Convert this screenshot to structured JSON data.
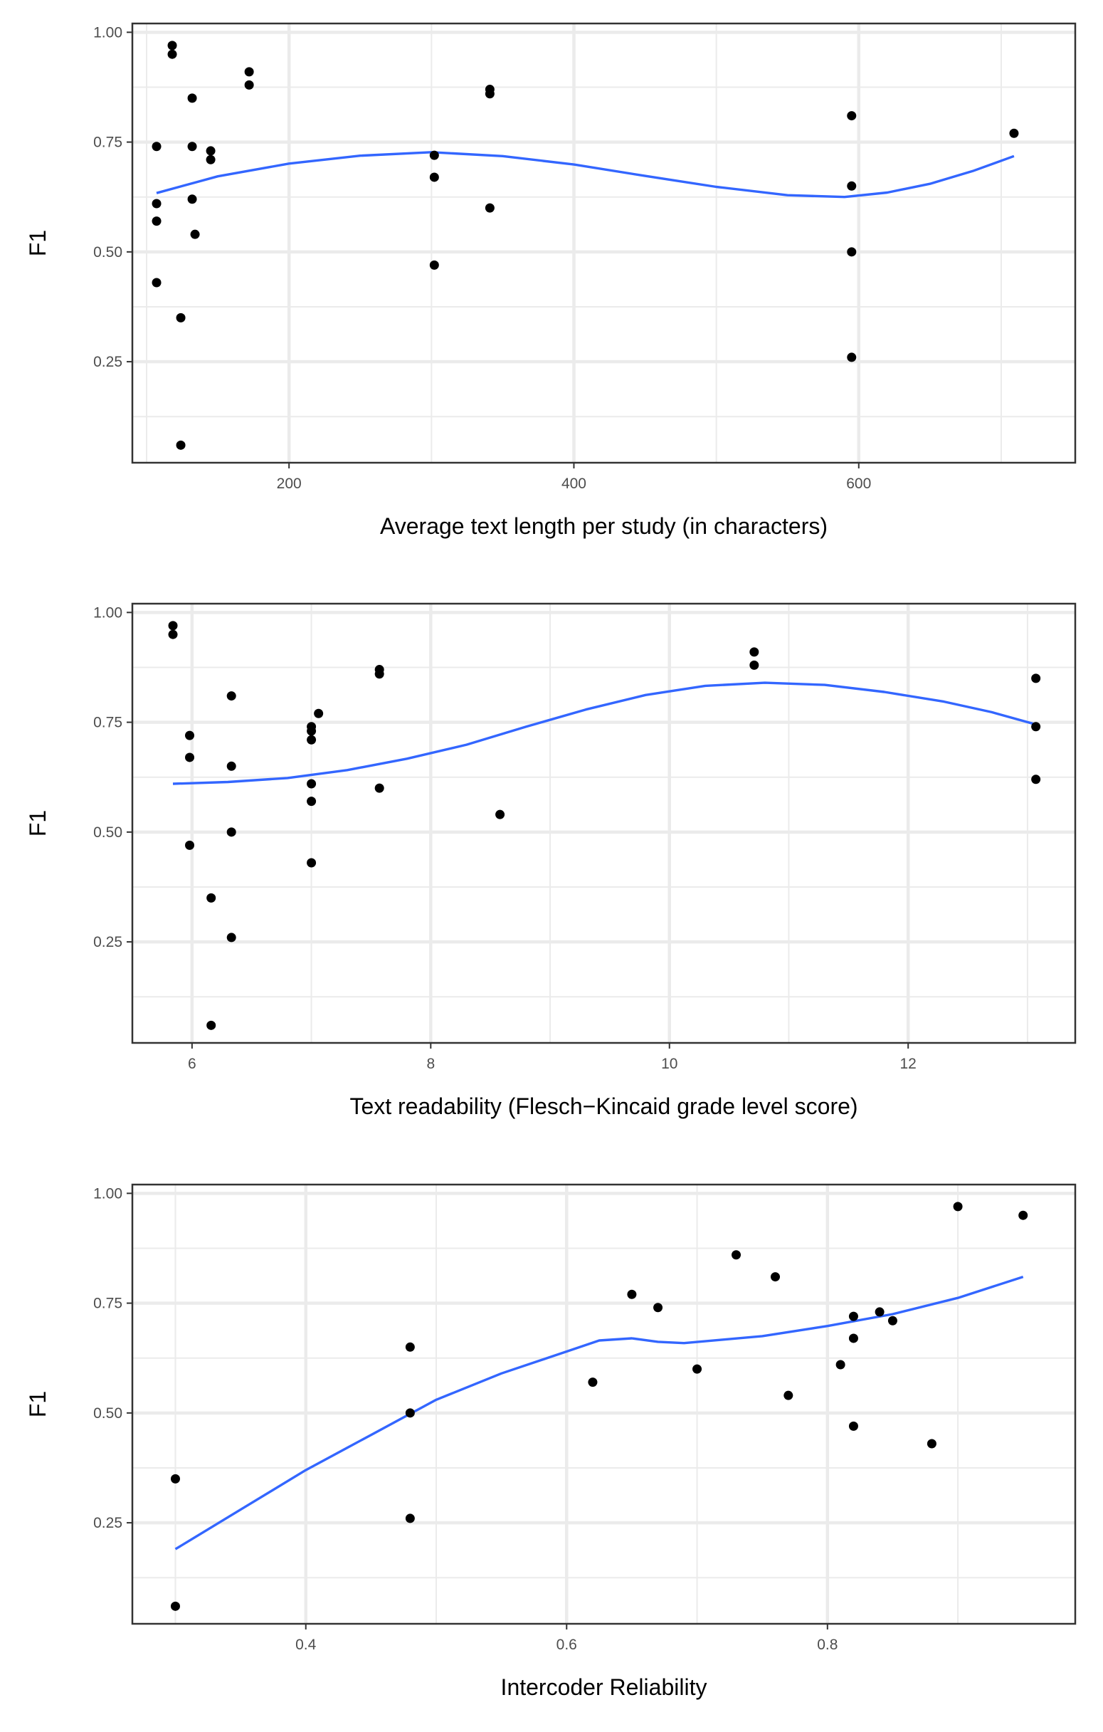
{
  "chart_data": [
    {
      "type": "scatter",
      "xlabel": "Average text length per study (in characters)",
      "ylabel": "F1",
      "xlim": [
        90,
        752
      ],
      "ylim": [
        0.02,
        1.02
      ],
      "xticks": [
        200,
        400,
        600
      ],
      "xtick_labels": [
        "200",
        "400",
        "600"
      ],
      "yticks": [
        0.25,
        0.5,
        0.75,
        1.0
      ],
      "ytick_labels": [
        "0.25",
        "0.50",
        "0.75",
        "1.00"
      ],
      "grid": true,
      "points": [
        {
          "x": 118,
          "y": 0.97
        },
        {
          "x": 118,
          "y": 0.95
        },
        {
          "x": 132,
          "y": 0.85
        },
        {
          "x": 107,
          "y": 0.74
        },
        {
          "x": 132,
          "y": 0.74
        },
        {
          "x": 145,
          "y": 0.73
        },
        {
          "x": 145,
          "y": 0.71
        },
        {
          "x": 107,
          "y": 0.61
        },
        {
          "x": 132,
          "y": 0.62
        },
        {
          "x": 107,
          "y": 0.57
        },
        {
          "x": 134,
          "y": 0.54
        },
        {
          "x": 107,
          "y": 0.43
        },
        {
          "x": 124,
          "y": 0.35
        },
        {
          "x": 124,
          "y": 0.06
        },
        {
          "x": 172,
          "y": 0.91
        },
        {
          "x": 172,
          "y": 0.88
        },
        {
          "x": 302,
          "y": 0.72
        },
        {
          "x": 302,
          "y": 0.67
        },
        {
          "x": 302,
          "y": 0.47
        },
        {
          "x": 341,
          "y": 0.87
        },
        {
          "x": 341,
          "y": 0.86
        },
        {
          "x": 341,
          "y": 0.6
        },
        {
          "x": 595,
          "y": 0.81
        },
        {
          "x": 595,
          "y": 0.65
        },
        {
          "x": 595,
          "y": 0.5
        },
        {
          "x": 595,
          "y": 0.26
        },
        {
          "x": 709,
          "y": 0.77
        }
      ],
      "smooth_line": [
        [
          107,
          0.634
        ],
        [
          150,
          0.672
        ],
        [
          200,
          0.701
        ],
        [
          250,
          0.719
        ],
        [
          300,
          0.727
        ],
        [
          350,
          0.718
        ],
        [
          400,
          0.699
        ],
        [
          450,
          0.673
        ],
        [
          500,
          0.648
        ],
        [
          550,
          0.629
        ],
        [
          590,
          0.625
        ],
        [
          620,
          0.635
        ],
        [
          650,
          0.655
        ],
        [
          680,
          0.684
        ],
        [
          709,
          0.718
        ]
      ]
    },
    {
      "type": "scatter",
      "xlabel": "Text readability (Flesch−Kincaid grade level score)",
      "ylabel": "F1",
      "xlim": [
        5.5,
        13.4
      ],
      "ylim": [
        0.02,
        1.02
      ],
      "xticks": [
        6,
        8,
        10,
        12
      ],
      "xtick_labels": [
        "6",
        "8",
        "10",
        "12"
      ],
      "yticks": [
        0.25,
        0.5,
        0.75,
        1.0
      ],
      "ytick_labels": [
        "0.25",
        "0.50",
        "0.75",
        "1.00"
      ],
      "grid": true,
      "points": [
        {
          "x": 5.84,
          "y": 0.97
        },
        {
          "x": 5.84,
          "y": 0.95
        },
        {
          "x": 5.98,
          "y": 0.72
        },
        {
          "x": 5.98,
          "y": 0.67
        },
        {
          "x": 5.98,
          "y": 0.47
        },
        {
          "x": 6.16,
          "y": 0.35
        },
        {
          "x": 6.16,
          "y": 0.06
        },
        {
          "x": 6.33,
          "y": 0.81
        },
        {
          "x": 6.33,
          "y": 0.65
        },
        {
          "x": 6.33,
          "y": 0.5
        },
        {
          "x": 6.33,
          "y": 0.26
        },
        {
          "x": 7.0,
          "y": 0.74
        },
        {
          "x": 7.0,
          "y": 0.73
        },
        {
          "x": 7.0,
          "y": 0.71
        },
        {
          "x": 7.0,
          "y": 0.61
        },
        {
          "x": 7.0,
          "y": 0.57
        },
        {
          "x": 7.0,
          "y": 0.43
        },
        {
          "x": 7.06,
          "y": 0.77
        },
        {
          "x": 7.57,
          "y": 0.87
        },
        {
          "x": 7.57,
          "y": 0.86
        },
        {
          "x": 7.57,
          "y": 0.6
        },
        {
          "x": 8.58,
          "y": 0.54
        },
        {
          "x": 10.71,
          "y": 0.91
        },
        {
          "x": 10.71,
          "y": 0.88
        },
        {
          "x": 13.07,
          "y": 0.85
        },
        {
          "x": 13.07,
          "y": 0.74
        },
        {
          "x": 13.07,
          "y": 0.62
        }
      ],
      "smooth_line": [
        [
          5.84,
          0.61
        ],
        [
          6.3,
          0.614
        ],
        [
          6.8,
          0.623
        ],
        [
          7.3,
          0.641
        ],
        [
          7.8,
          0.667
        ],
        [
          8.3,
          0.699
        ],
        [
          8.8,
          0.74
        ],
        [
          9.3,
          0.779
        ],
        [
          9.8,
          0.812
        ],
        [
          10.3,
          0.833
        ],
        [
          10.8,
          0.84
        ],
        [
          11.3,
          0.835
        ],
        [
          11.8,
          0.819
        ],
        [
          12.3,
          0.797
        ],
        [
          12.7,
          0.773
        ],
        [
          13.07,
          0.745
        ]
      ]
    },
    {
      "type": "scatter",
      "xlabel": "Intercoder Reliability",
      "ylabel": "F1",
      "xlim": [
        0.267,
        0.99
      ],
      "ylim": [
        0.02,
        1.02
      ],
      "xticks": [
        0.4,
        0.6,
        0.8
      ],
      "xtick_labels": [
        "0.4",
        "0.6",
        "0.8"
      ],
      "yticks": [
        0.25,
        0.5,
        0.75,
        1.0
      ],
      "ytick_labels": [
        "0.25",
        "0.50",
        "0.75",
        "1.00"
      ],
      "grid": true,
      "points": [
        {
          "x": 0.3,
          "y": 0.35
        },
        {
          "x": 0.3,
          "y": 0.06
        },
        {
          "x": 0.48,
          "y": 0.65
        },
        {
          "x": 0.48,
          "y": 0.5
        },
        {
          "x": 0.48,
          "y": 0.26
        },
        {
          "x": 0.62,
          "y": 0.57
        },
        {
          "x": 0.65,
          "y": 0.77
        },
        {
          "x": 0.67,
          "y": 0.74
        },
        {
          "x": 0.7,
          "y": 0.6
        },
        {
          "x": 0.73,
          "y": 0.86
        },
        {
          "x": 0.76,
          "y": 0.81
        },
        {
          "x": 0.77,
          "y": 0.54
        },
        {
          "x": 0.81,
          "y": 0.61
        },
        {
          "x": 0.82,
          "y": 0.72
        },
        {
          "x": 0.82,
          "y": 0.67
        },
        {
          "x": 0.82,
          "y": 0.47
        },
        {
          "x": 0.84,
          "y": 0.73
        },
        {
          "x": 0.85,
          "y": 0.71
        },
        {
          "x": 0.88,
          "y": 0.43
        },
        {
          "x": 0.9,
          "y": 0.97
        },
        {
          "x": 0.95,
          "y": 0.95
        }
      ],
      "smooth_line": [
        [
          0.3,
          0.19
        ],
        [
          0.35,
          0.28
        ],
        [
          0.4,
          0.37
        ],
        [
          0.45,
          0.45
        ],
        [
          0.5,
          0.53
        ],
        [
          0.55,
          0.59
        ],
        [
          0.6,
          0.64
        ],
        [
          0.625,
          0.665
        ],
        [
          0.65,
          0.67
        ],
        [
          0.67,
          0.662
        ],
        [
          0.69,
          0.659
        ],
        [
          0.72,
          0.667
        ],
        [
          0.75,
          0.675
        ],
        [
          0.8,
          0.698
        ],
        [
          0.85,
          0.725
        ],
        [
          0.9,
          0.762
        ],
        [
          0.95,
          0.81
        ]
      ]
    }
  ],
  "colors": {
    "smooth_line": "#3366FF",
    "point": "#000000",
    "grid_major": "#EBEBEB",
    "grid_minor": "#EBEBEB",
    "panel_border": "#333333",
    "tick_text": "#4D4D4D"
  }
}
